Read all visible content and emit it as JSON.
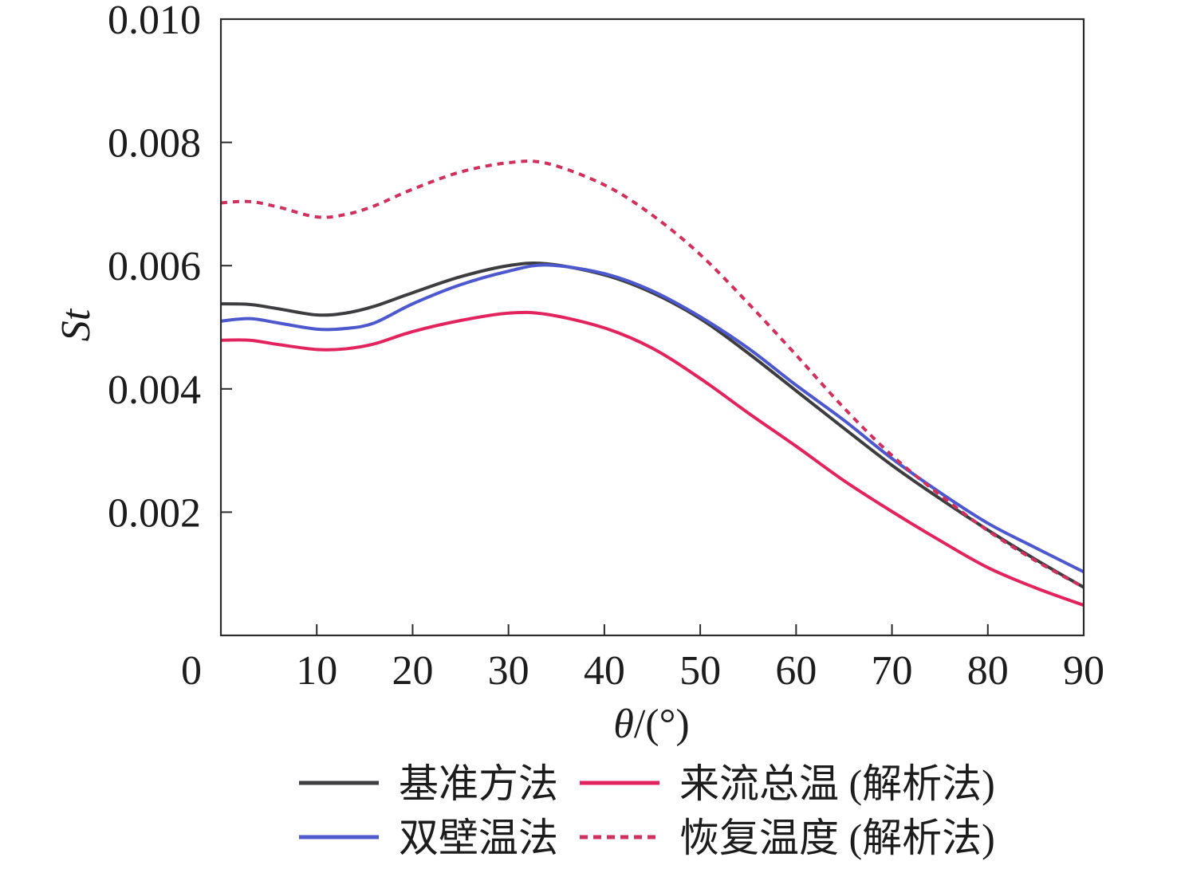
{
  "chart_data": {
    "type": "line",
    "xlabel": "θ/(°)",
    "ylabel": "St",
    "xlim": [
      0,
      90
    ],
    "ylim": [
      0,
      0.01
    ],
    "x_ticks": [
      0,
      10,
      20,
      30,
      40,
      50,
      60,
      70,
      80,
      90
    ],
    "x_tick_labels": [
      "0",
      "10",
      "20",
      "30",
      "40",
      "50",
      "60",
      "70",
      "80",
      "90"
    ],
    "y_ticks": [
      0.002,
      0.004,
      0.006,
      0.008,
      0.01
    ],
    "y_tick_labels": [
      "0.002",
      "0.004",
      "0.006",
      "0.008",
      "0.010"
    ],
    "grid": false,
    "legend": "bottom",
    "x": [
      0,
      3,
      6,
      10,
      13,
      16,
      20,
      25,
      30,
      34,
      40,
      45,
      50,
      55,
      60,
      65,
      70,
      75,
      80,
      85,
      90
    ],
    "series": [
      {
        "name": "基准方法",
        "color": "#3d3d40",
        "style": "solid",
        "values": [
          0.00538,
          0.00537,
          0.0053,
          0.0052,
          0.00523,
          0.00534,
          0.00556,
          0.00582,
          0.006,
          0.00603,
          0.00585,
          0.00556,
          0.00514,
          0.00458,
          0.00397,
          0.00336,
          0.00276,
          0.00222,
          0.00171,
          0.00123,
          0.00078
        ]
      },
      {
        "name": "双壁温法",
        "color": "#4c58cc",
        "style": "solid",
        "values": [
          0.0051,
          0.00514,
          0.00507,
          0.00497,
          0.00498,
          0.00507,
          0.00538,
          0.00569,
          0.00591,
          0.00601,
          0.00587,
          0.00559,
          0.00517,
          0.00466,
          0.00406,
          0.00349,
          0.00287,
          0.00232,
          0.00182,
          0.00142,
          0.00103
        ]
      },
      {
        "name": "来流总温 (解析法)",
        "color": "#e2245e",
        "style": "solid",
        "values": [
          0.00479,
          0.00479,
          0.00472,
          0.00464,
          0.00465,
          0.00473,
          0.00493,
          0.00511,
          0.00523,
          0.00521,
          0.00499,
          0.00466,
          0.00417,
          0.00361,
          0.00307,
          0.00251,
          0.00201,
          0.00154,
          0.0011,
          0.00077,
          0.00049
        ]
      },
      {
        "name": "恢复温度 (解析法)",
        "color": "#d0305e",
        "style": "dotted",
        "values": [
          0.00702,
          0.00704,
          0.00695,
          0.00679,
          0.00683,
          0.00697,
          0.00724,
          0.00752,
          0.00767,
          0.00766,
          0.00731,
          0.00682,
          0.00618,
          0.00539,
          0.00455,
          0.00369,
          0.00292,
          0.00228,
          0.0017,
          0.00121,
          0.00078
        ]
      }
    ]
  }
}
